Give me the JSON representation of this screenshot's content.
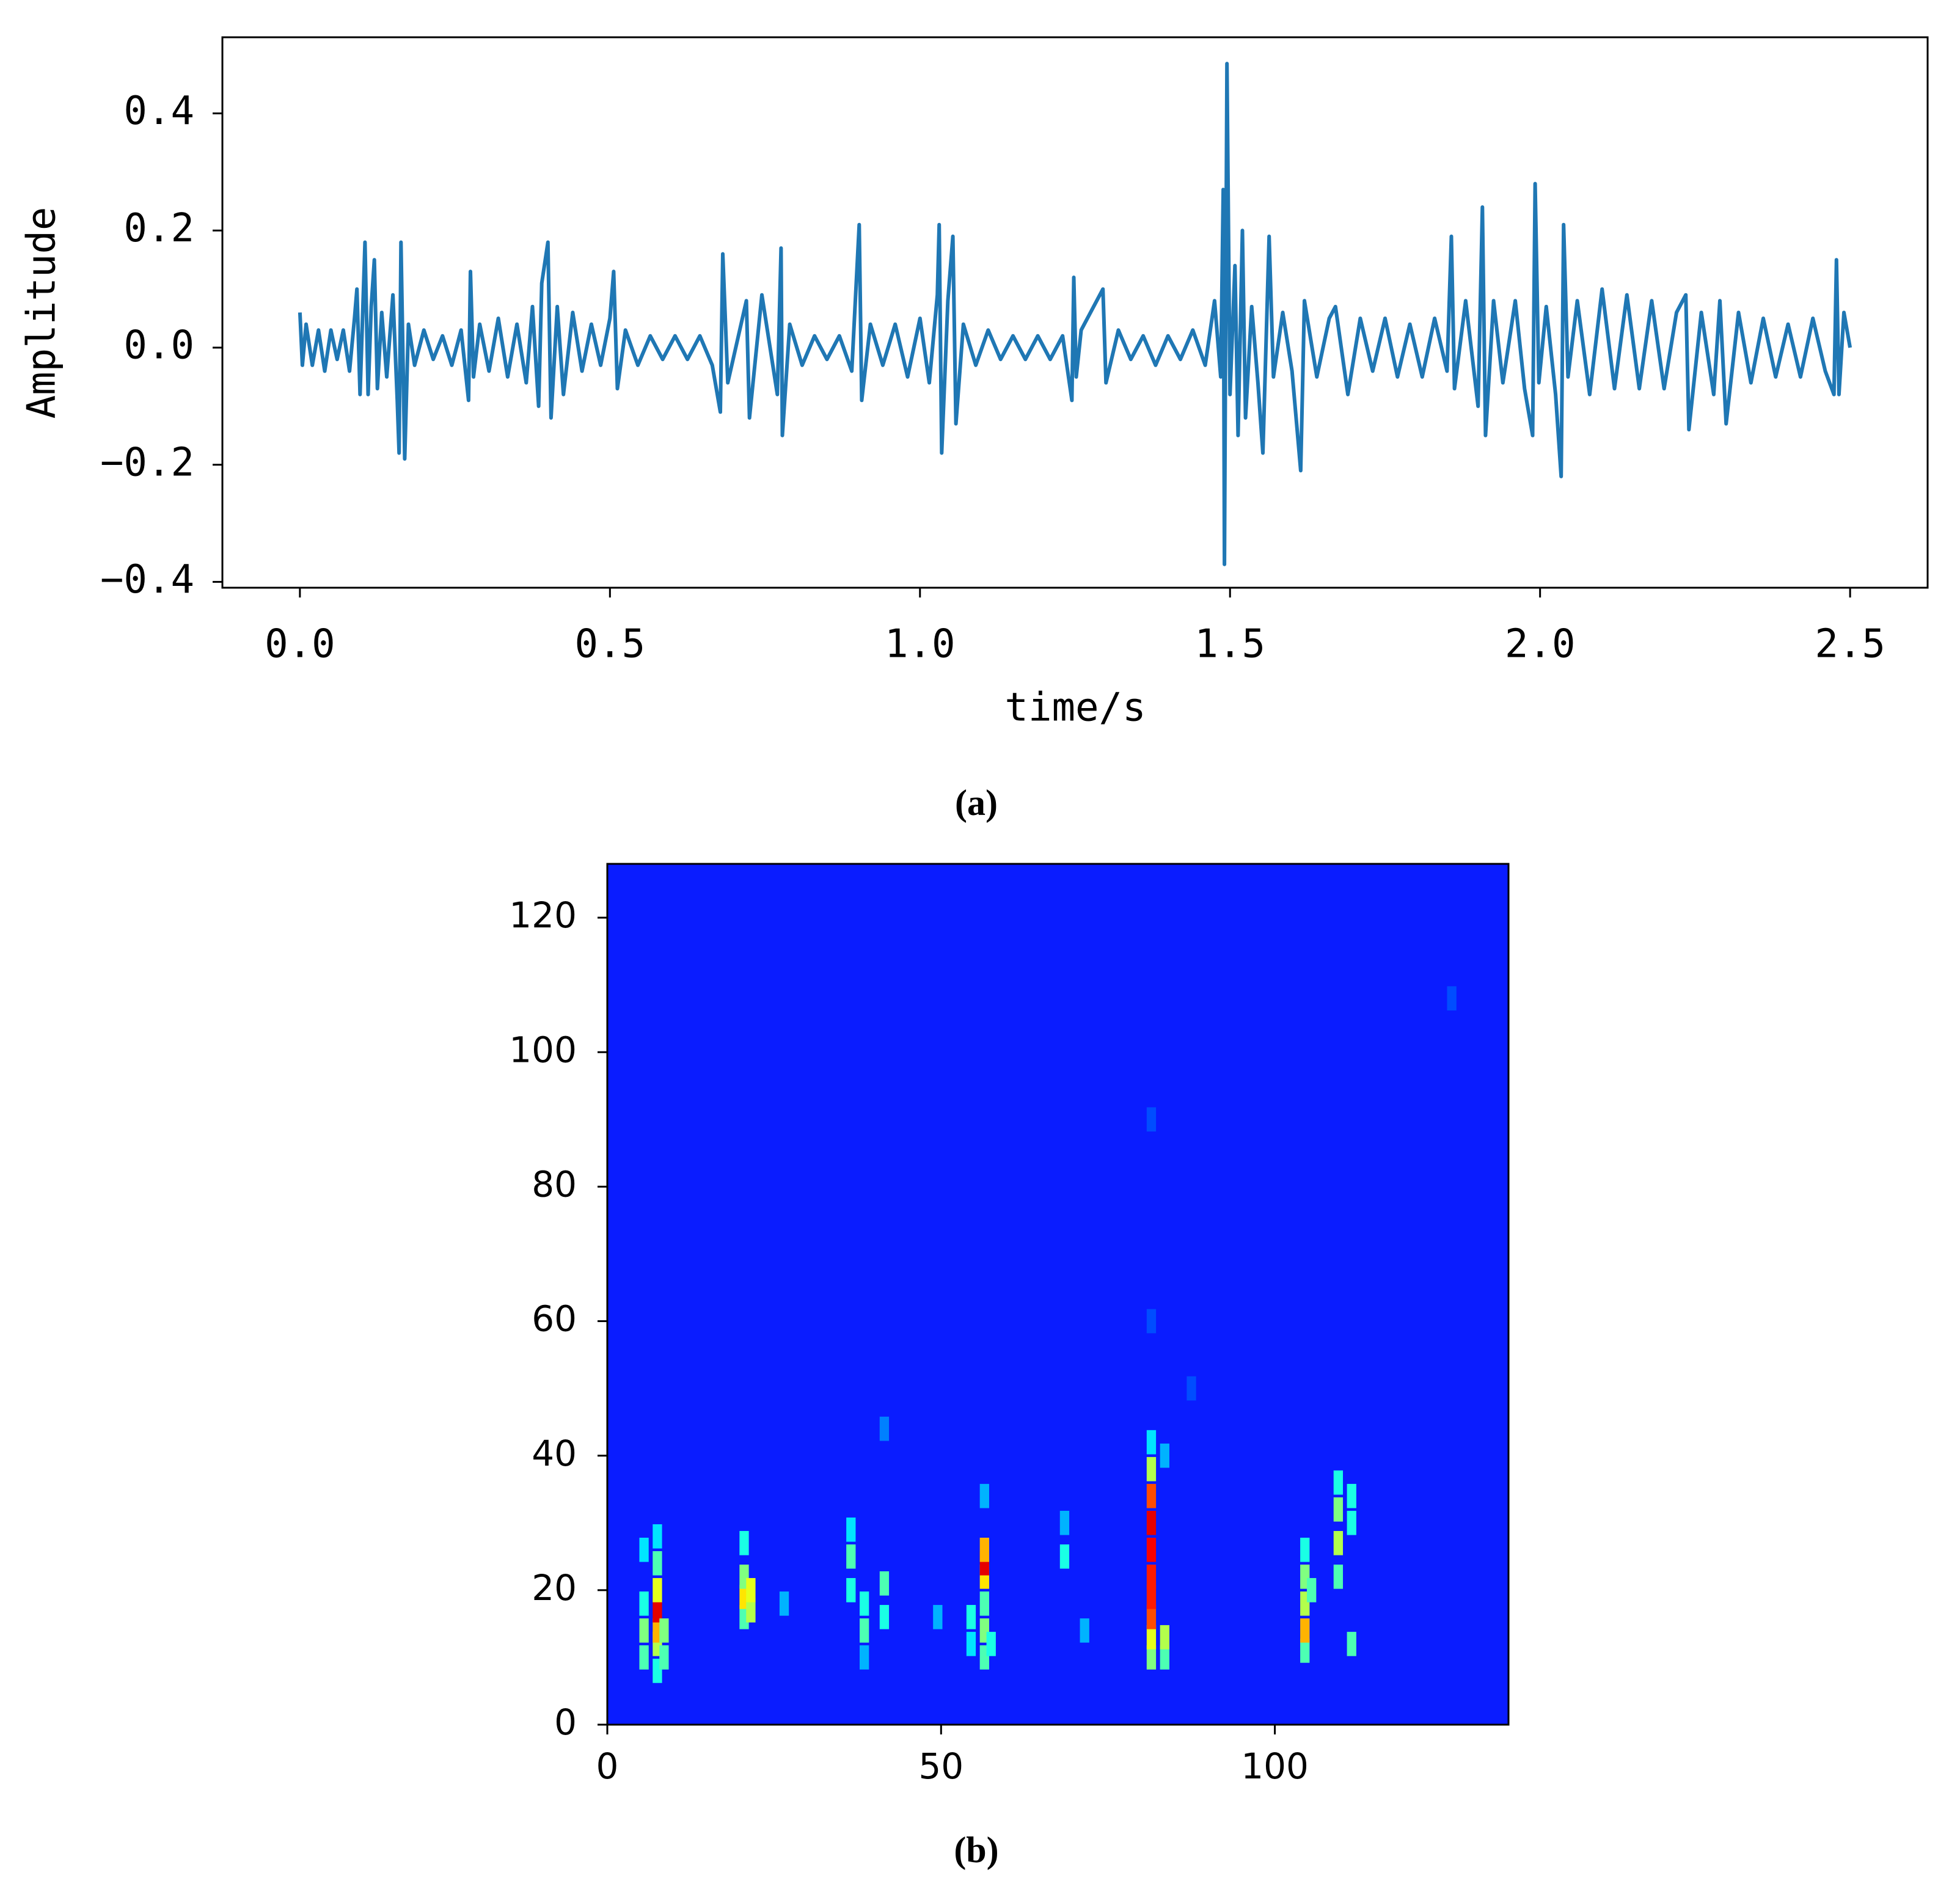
{
  "chart_data": [
    {
      "type": "line",
      "caption": "(a)",
      "x_label": "time/s",
      "y_label": "Amplitude",
      "color": "#1f77b4",
      "xlim": [
        -0.125,
        2.625
      ],
      "ylim": [
        -0.41,
        0.53
      ],
      "xticks": [
        {
          "value": 0,
          "label": "0.0"
        },
        0.5,
        {
          "value": 1,
          "label": "1.0"
        },
        1.5,
        {
          "value": 2,
          "label": "2.0"
        },
        2.5
      ],
      "yticks": [
        {
          "value": -0.4,
          "label": "−0.4"
        },
        {
          "value": -0.2,
          "label": "−0.2"
        },
        {
          "value": 0,
          "label": "0.0"
        },
        0.2,
        0.4
      ],
      "x": [
        0,
        0.004,
        0.01,
        0.02,
        0.03,
        0.04,
        0.05,
        0.06,
        0.07,
        0.08,
        0.088,
        0.092,
        0.097,
        0.105,
        0.11,
        0.115,
        0.12,
        0.125,
        0.132,
        0.14,
        0.15,
        0.157,
        0.16,
        0.163,
        0.169,
        0.175,
        0.185,
        0.2,
        0.215,
        0.23,
        0.245,
        0.26,
        0.272,
        0.275,
        0.28,
        0.29,
        0.305,
        0.32,
        0.335,
        0.35,
        0.365,
        0.375,
        0.385,
        0.39,
        0.4,
        0.405,
        0.415,
        0.425,
        0.44,
        0.455,
        0.47,
        0.485,
        0.5,
        0.506,
        0.512,
        0.525,
        0.545,
        0.565,
        0.585,
        0.605,
        0.625,
        0.645,
        0.665,
        0.678,
        0.682,
        0.69,
        0.72,
        0.725,
        0.745,
        0.77,
        0.776,
        0.778,
        0.79,
        0.81,
        0.83,
        0.85,
        0.87,
        0.89,
        0.902,
        0.906,
        0.92,
        0.94,
        0.96,
        0.98,
        1.0,
        1.015,
        1.028,
        1.031,
        1.035,
        1.045,
        1.053,
        1.058,
        1.07,
        1.09,
        1.11,
        1.13,
        1.15,
        1.17,
        1.19,
        1.21,
        1.23,
        1.245,
        1.248,
        1.252,
        1.26,
        1.295,
        1.3,
        1.32,
        1.34,
        1.36,
        1.38,
        1.4,
        1.42,
        1.44,
        1.46,
        1.475,
        1.485,
        1.489,
        1.491,
        1.495,
        1.5,
        1.508,
        1.513,
        1.52,
        1.525,
        1.535,
        1.545,
        1.553,
        1.563,
        1.57,
        1.585,
        1.6,
        1.614,
        1.62,
        1.64,
        1.66,
        1.67,
        1.69,
        1.71,
        1.73,
        1.75,
        1.77,
        1.79,
        1.81,
        1.83,
        1.85,
        1.857,
        1.862,
        1.88,
        1.9,
        1.907,
        1.912,
        1.925,
        1.94,
        1.96,
        1.975,
        1.988,
        1.992,
        1.998,
        2.01,
        2.025,
        2.034,
        2.038,
        2.045,
        2.06,
        2.08,
        2.1,
        2.12,
        2.14,
        2.16,
        2.18,
        2.2,
        2.22,
        2.235,
        2.24,
        2.26,
        2.28,
        2.29,
        2.3,
        2.32,
        2.34,
        2.36,
        2.38,
        2.4,
        2.42,
        2.44,
        2.46,
        2.474,
        2.478,
        2.482,
        2.49,
        2.5
      ],
      "values": [
        0.06,
        -0.03,
        0.04,
        -0.03,
        0.03,
        -0.04,
        0.03,
        -0.02,
        0.03,
        -0.04,
        0.05,
        0.1,
        -0.08,
        0.18,
        -0.08,
        0.07,
        0.15,
        -0.07,
        0.06,
        -0.05,
        0.09,
        -0.09,
        -0.18,
        0.18,
        -0.19,
        0.04,
        -0.03,
        0.03,
        -0.02,
        0.02,
        -0.03,
        0.03,
        -0.09,
        0.13,
        -0.05,
        0.04,
        -0.04,
        0.05,
        -0.05,
        0.04,
        -0.06,
        0.07,
        -0.1,
        0.11,
        0.18,
        -0.12,
        0.07,
        -0.08,
        0.06,
        -0.04,
        0.04,
        -0.03,
        0.05,
        0.13,
        -0.07,
        0.03,
        -0.03,
        0.02,
        -0.02,
        0.02,
        -0.02,
        0.02,
        -0.03,
        -0.11,
        0.16,
        -0.06,
        0.08,
        -0.12,
        0.09,
        -0.08,
        0.17,
        -0.15,
        0.04,
        -0.03,
        0.02,
        -0.02,
        0.02,
        -0.04,
        0.21,
        -0.09,
        0.04,
        -0.03,
        0.04,
        -0.05,
        0.05,
        -0.06,
        0.09,
        0.21,
        -0.18,
        0.08,
        0.19,
        -0.13,
        0.04,
        -0.03,
        0.03,
        -0.02,
        0.02,
        -0.02,
        0.02,
        -0.02,
        0.02,
        -0.09,
        0.12,
        -0.05,
        0.03,
        0.1,
        -0.06,
        0.03,
        -0.02,
        0.02,
        -0.03,
        0.02,
        -0.02,
        0.03,
        -0.03,
        0.08,
        -0.05,
        0.27,
        -0.37,
        0.485,
        -0.08,
        0.14,
        -0.15,
        0.2,
        -0.12,
        0.07,
        -0.06,
        -0.18,
        0.19,
        -0.05,
        0.06,
        -0.04,
        -0.21,
        0.08,
        -0.05,
        0.05,
        0.07,
        -0.08,
        0.05,
        -0.04,
        0.05,
        -0.05,
        0.04,
        -0.05,
        0.05,
        -0.04,
        0.19,
        -0.07,
        0.08,
        -0.1,
        0.24,
        -0.15,
        0.08,
        -0.06,
        0.08,
        -0.07,
        -0.15,
        0.28,
        -0.06,
        0.07,
        -0.08,
        -0.22,
        0.21,
        -0.05,
        0.08,
        -0.08,
        0.1,
        -0.07,
        0.09,
        -0.07,
        0.08,
        -0.07,
        0.06,
        0.09,
        -0.14,
        0.06,
        -0.08,
        0.08,
        -0.13,
        0.06,
        -0.06,
        0.05,
        -0.05,
        0.04,
        -0.05,
        0.05,
        -0.04,
        -0.08,
        0.15,
        -0.08,
        0.06,
        0
      ]
    },
    {
      "type": "heatmap",
      "caption": "(b)",
      "background": "#0a1cff",
      "xlim": [
        0,
        135
      ],
      "ylim": [
        0,
        128
      ],
      "xticks": [
        0,
        50,
        100
      ],
      "yticks": [
        0,
        20,
        40,
        60,
        80,
        100,
        120
      ],
      "x": [
        5,
        5,
        5,
        5,
        7,
        7,
        7,
        7,
        7,
        7,
        7,
        8,
        8,
        20,
        20,
        20,
        20,
        21,
        21,
        26,
        36,
        36,
        36,
        38,
        38,
        38,
        41,
        41,
        41,
        49,
        54,
        54,
        56,
        56,
        56,
        56,
        56,
        56,
        56,
        57,
        68,
        68,
        71,
        81,
        81,
        81,
        81,
        81,
        81,
        81,
        81,
        81,
        81,
        81,
        81,
        83,
        83,
        83,
        87,
        104,
        104,
        104,
        104,
        104,
        105,
        109,
        109,
        109,
        109,
        111,
        111,
        111,
        126
      ],
      "y": [
        10,
        14,
        18,
        26,
        8,
        12,
        14,
        17,
        20,
        24,
        28,
        10,
        14,
        16,
        19,
        22,
        27,
        17,
        20,
        18,
        20,
        25,
        29,
        10,
        14,
        18,
        16,
        21,
        44,
        16,
        12,
        16,
        10,
        14,
        18,
        22,
        24,
        26,
        34,
        12,
        25,
        30,
        14,
        10,
        13,
        16,
        19,
        22,
        26,
        30,
        34,
        38,
        42,
        60,
        90,
        10,
        13,
        40,
        50,
        11,
        14,
        18,
        22,
        26,
        20,
        22,
        27,
        32,
        36,
        12,
        30,
        34,
        108
      ],
      "values": [
        0.45,
        0.5,
        0.4,
        0.35,
        0.4,
        0.55,
        0.7,
        0.9,
        0.6,
        0.45,
        0.35,
        0.45,
        0.5,
        0.45,
        0.65,
        0.5,
        0.4,
        0.55,
        0.6,
        0.3,
        0.4,
        0.45,
        0.35,
        0.3,
        0.45,
        0.4,
        0.4,
        0.45,
        0.25,
        0.3,
        0.35,
        0.4,
        0.45,
        0.5,
        0.45,
        0.65,
        0.9,
        0.7,
        0.3,
        0.4,
        0.4,
        0.3,
        0.3,
        0.5,
        0.6,
        0.8,
        0.85,
        0.85,
        0.88,
        0.9,
        0.8,
        0.55,
        0.35,
        0.2,
        0.2,
        0.45,
        0.55,
        0.3,
        0.2,
        0.45,
        0.7,
        0.55,
        0.5,
        0.4,
        0.45,
        0.45,
        0.55,
        0.5,
        0.4,
        0.45,
        0.4,
        0.4,
        0.2
      ]
    }
  ]
}
